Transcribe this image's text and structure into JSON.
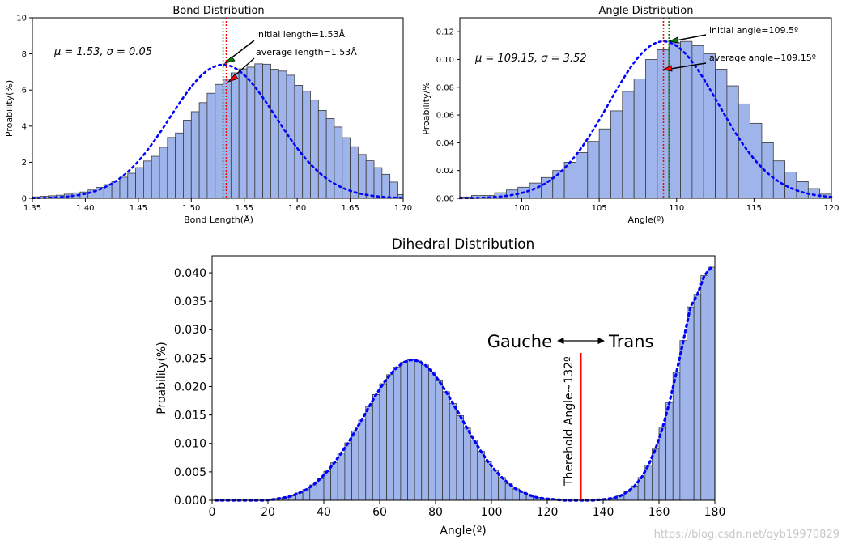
{
  "watermark": "https://blog.csdn.net/qyb19970829",
  "colors": {
    "bar_fill": "#9fb4ea",
    "bar_edge": "#3a3a3a",
    "fit_line": "#0000ff",
    "initial_line": "#008000",
    "average_line": "#ff0000",
    "threshold_line": "#ff0000"
  },
  "chart_data": [
    {
      "id": "bond",
      "type": "bar",
      "title": "Bond Distribution",
      "xlabel": "Bond Length(Å)",
      "ylabel": "Proability(%)",
      "xlim": [
        1.35,
        1.7
      ],
      "ylim": [
        0,
        10
      ],
      "xticks": [
        1.35,
        1.4,
        1.45,
        1.5,
        1.55,
        1.6,
        1.65,
        1.7
      ],
      "xtick_labels": [
        "1.35",
        "1.40",
        "1.45",
        "1.50",
        "1.55",
        "1.60",
        "1.65",
        "1.70"
      ],
      "yticks": [
        0,
        2,
        4,
        6,
        8,
        10
      ],
      "ytick_labels": [
        "0",
        "2",
        "4",
        "6",
        "8",
        "10"
      ],
      "fit": {
        "mu": 1.53,
        "sigma": 0.05,
        "peak": 7.4
      },
      "bins": {
        "start": 1.35,
        "width": 0.0075,
        "count": 47
      },
      "values": [
        0.08,
        0.11,
        0.14,
        0.17,
        0.23,
        0.3,
        0.35,
        0.46,
        0.61,
        0.76,
        0.95,
        1.17,
        1.39,
        1.7,
        2.07,
        2.33,
        2.83,
        3.37,
        3.62,
        4.33,
        4.8,
        5.3,
        5.82,
        6.31,
        6.6,
        6.95,
        7.17,
        7.27,
        7.45,
        7.43,
        7.15,
        7.05,
        6.82,
        6.26,
        5.93,
        5.44,
        4.87,
        4.42,
        3.95,
        3.36,
        2.86,
        2.43,
        2.08,
        1.7,
        1.33,
        0.9,
        0.2
      ],
      "stats_text": "μ = 1.53, σ = 0.05",
      "initial_value": 1.53,
      "average_value": 1.533,
      "annotations": [
        {
          "label": "initial length=1.53Å",
          "kind": "initial"
        },
        {
          "label": "average length=1.53Å",
          "kind": "average"
        }
      ]
    },
    {
      "id": "angle",
      "type": "bar",
      "title": "Angle Distribution",
      "xlabel": "Angle(º)",
      "ylabel": "Proability/%",
      "xlim": [
        96,
        120
      ],
      "ylim": [
        0,
        0.13
      ],
      "xticks": [
        100,
        105,
        110,
        115,
        120
      ],
      "xtick_labels": [
        "100",
        "105",
        "110",
        "115",
        "120"
      ],
      "yticks": [
        0,
        0.02,
        0.04,
        0.06,
        0.08,
        0.1,
        0.12
      ],
      "ytick_labels": [
        "0.00",
        "0.02",
        "0.04",
        "0.06",
        "0.08",
        "0.10",
        "0.12"
      ],
      "fit": {
        "mu": 109.15,
        "sigma": 3.52,
        "peak": 0.113
      },
      "bins": {
        "start": 96,
        "width": 0.75,
        "count": 32
      },
      "values": [
        0.001,
        0.002,
        0.002,
        0.004,
        0.006,
        0.008,
        0.011,
        0.015,
        0.02,
        0.026,
        0.033,
        0.041,
        0.05,
        0.063,
        0.077,
        0.086,
        0.1,
        0.107,
        0.112,
        0.113,
        0.11,
        0.104,
        0.093,
        0.081,
        0.068,
        0.054,
        0.04,
        0.027,
        0.019,
        0.012,
        0.007,
        0.003
      ],
      "stats_text": "μ = 109.15, σ = 3.52",
      "initial_value": 109.5,
      "average_value": 109.15,
      "annotations": [
        {
          "label": "initial angle=109.5º",
          "kind": "initial"
        },
        {
          "label": "average angle=109.15º",
          "kind": "average"
        }
      ]
    },
    {
      "id": "dihedral",
      "type": "bar",
      "title": "Dihedral Distribution",
      "xlabel": "Angle(º)",
      "ylabel": "Proability(%)",
      "xlim": [
        0,
        180
      ],
      "ylim": [
        0,
        0.043
      ],
      "xticks": [
        0,
        20,
        40,
        60,
        80,
        100,
        120,
        140,
        160,
        180
      ],
      "xtick_labels": [
        "0",
        "20",
        "40",
        "60",
        "80",
        "100",
        "120",
        "140",
        "160",
        "180"
      ],
      "yticks": [
        0,
        0.005,
        0.01,
        0.015,
        0.02,
        0.025,
        0.03,
        0.035,
        0.04
      ],
      "ytick_labels": [
        "0.000",
        "0.005",
        "0.010",
        "0.015",
        "0.020",
        "0.025",
        "0.030",
        "0.035",
        "0.040"
      ],
      "bins": {
        "start": 0,
        "width": 2.5,
        "count": 72
      },
      "values": [
        0,
        0,
        0,
        0,
        0,
        0,
        0,
        0,
        0.0001,
        0.0003,
        0.0005,
        0.0008,
        0.0013,
        0.0019,
        0.0027,
        0.0038,
        0.0051,
        0.0066,
        0.0083,
        0.0101,
        0.0122,
        0.0143,
        0.0165,
        0.0186,
        0.0205,
        0.0221,
        0.0234,
        0.0243,
        0.0247,
        0.0245,
        0.0238,
        0.0226,
        0.021,
        0.0191,
        0.017,
        0.0149,
        0.0127,
        0.0106,
        0.0086,
        0.0068,
        0.0053,
        0.004,
        0.0029,
        0.002,
        0.0014,
        0.0009,
        0.0005,
        0.0003,
        0.0002,
        0.0001,
        0,
        0,
        0,
        0,
        0,
        0.0001,
        0.0002,
        0.0004,
        0.0008,
        0.0015,
        0.0025,
        0.004,
        0.0062,
        0.009,
        0.0127,
        0.0172,
        0.0225,
        0.0281,
        0.034,
        0.0362,
        0.0395,
        0.041
      ],
      "threshold_value": 132,
      "threshold_label": "Therehold Angle~132º",
      "gauche_label": "Gauche",
      "trans_label": "Trans"
    }
  ]
}
